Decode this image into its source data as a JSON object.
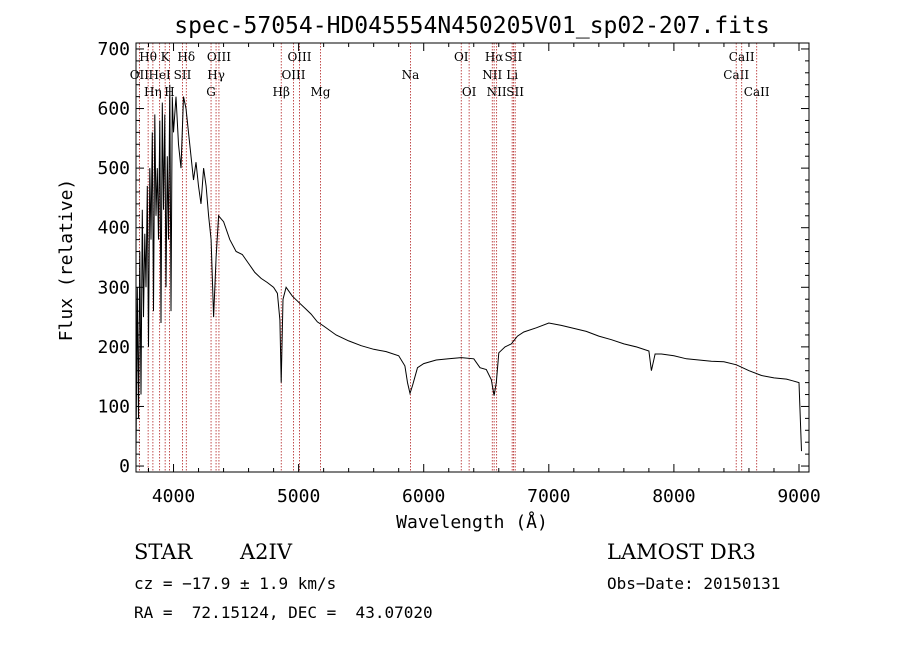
{
  "chart_data": {
    "type": "line",
    "title": "spec-57054-HD045554N450205V01_sp02-207.fits",
    "xlabel": "Wavelength (Å)",
    "ylabel": "Flux (relative)",
    "xlim": [
      3700,
      9080
    ],
    "ylim": [
      -10,
      710
    ],
    "xticks": [
      4000,
      5000,
      6000,
      7000,
      8000,
      9000
    ],
    "yticks": [
      0,
      100,
      200,
      300,
      400,
      500,
      600,
      700
    ],
    "grid": false,
    "series": [
      {
        "values_x": [
          3700,
          3710,
          3720,
          3730,
          3740,
          3750,
          3760,
          3770,
          3780,
          3790,
          3800,
          3810,
          3820,
          3830,
          3840,
          3850,
          3860,
          3870,
          3880,
          3890,
          3900,
          3910,
          3920,
          3930,
          3940,
          3950,
          3960,
          3970,
          3980,
          3990,
          4000,
          4020,
          4040,
          4060,
          4080,
          4100,
          4120,
          4140,
          4160,
          4180,
          4200,
          4220,
          4240,
          4260,
          4280,
          4300,
          4320,
          4340,
          4360,
          4380,
          4400,
          4450,
          4500,
          4550,
          4600,
          4650,
          4700,
          4750,
          4800,
          4830,
          4850,
          4861,
          4875,
          4900,
          4950,
          5000,
          5050,
          5100,
          5150,
          5200,
          5300,
          5400,
          5500,
          5600,
          5700,
          5800,
          5850,
          5870,
          5890,
          5910,
          5950,
          6000,
          6100,
          6200,
          6300,
          6400,
          6450,
          6500,
          6540,
          6563,
          6580,
          6600,
          6650,
          6700,
          6750,
          6800,
          6900,
          7000,
          7100,
          7200,
          7300,
          7400,
          7500,
          7600,
          7700,
          7800,
          7820,
          7850,
          7900,
          8000,
          8100,
          8200,
          8300,
          8400,
          8500,
          8600,
          8700,
          8800,
          8900,
          8950,
          9000,
          9020
        ],
        "values_y": [
          20,
          300,
          80,
          360,
          120,
          430,
          250,
          390,
          300,
          470,
          200,
          500,
          380,
          560,
          260,
          590,
          420,
          500,
          380,
          580,
          240,
          610,
          430,
          590,
          300,
          520,
          380,
          640,
          260,
          620,
          560,
          620,
          540,
          500,
          620,
          600,
          560,
          520,
          480,
          510,
          470,
          440,
          500,
          470,
          420,
          380,
          250,
          350,
          420,
          415,
          410,
          380,
          360,
          355,
          340,
          325,
          315,
          308,
          300,
          290,
          245,
          140,
          280,
          300,
          285,
          275,
          265,
          255,
          242,
          235,
          220,
          210,
          202,
          196,
          192,
          185,
          168,
          140,
          122,
          135,
          165,
          172,
          178,
          180,
          182,
          180,
          165,
          162,
          145,
          118,
          140,
          190,
          200,
          205,
          218,
          225,
          232,
          240,
          236,
          231,
          226,
          218,
          212,
          205,
          200,
          193,
          160,
          188,
          188,
          185,
          180,
          178,
          176,
          175,
          170,
          160,
          152,
          148,
          146,
          143,
          140,
          25
        ]
      }
    ],
    "lines": [
      {
        "label": "OII",
        "x": 3727,
        "row": 1
      },
      {
        "label": "Hθ",
        "x": 3797,
        "row": 0
      },
      {
        "label": "Hη",
        "x": 3835,
        "row": 2
      },
      {
        "label": "HeI",
        "x": 3889,
        "row": 1
      },
      {
        "label": "K",
        "x": 3933,
        "row": 0
      },
      {
        "label": "H",
        "x": 3968,
        "row": 2
      },
      {
        "label": "SII",
        "x": 4072,
        "row": 1
      },
      {
        "label": "Hδ",
        "x": 4102,
        "row": 0
      },
      {
        "label": "G",
        "x": 4300,
        "row": 2
      },
      {
        "label": "Hγ",
        "x": 4340,
        "row": 1
      },
      {
        "label": "OIII",
        "x": 4363,
        "row": 0
      },
      {
        "label": "Hβ",
        "x": 4861,
        "row": 2
      },
      {
        "label": "OIII",
        "x": 4959,
        "row": 1
      },
      {
        "label": "OIII",
        "x": 5007,
        "row": 0
      },
      {
        "label": "Mg",
        "x": 5175,
        "row": 2
      },
      {
        "label": "Na",
        "x": 5894,
        "row": 1
      },
      {
        "label": "OI",
        "x": 6300,
        "row": 0
      },
      {
        "label": "OI",
        "x": 6363,
        "row": 2
      },
      {
        "label": "NII",
        "x": 6548,
        "row": 1
      },
      {
        "label": "Hα",
        "x": 6563,
        "row": 0
      },
      {
        "label": "NII",
        "x": 6583,
        "row": 2
      },
      {
        "label": "Li",
        "x": 6707,
        "row": 1
      },
      {
        "label": "SII",
        "x": 6717,
        "row": 0
      },
      {
        "label": "SII",
        "x": 6731,
        "row": 2
      },
      {
        "label": "CaII",
        "x": 8498,
        "row": 1
      },
      {
        "label": "CaII",
        "x": 8542,
        "row": 0
      },
      {
        "label": "CaII",
        "x": 8662,
        "row": 2
      }
    ]
  },
  "info": {
    "class": "STAR",
    "subclass": "A2IV",
    "survey": "LAMOST DR3",
    "cz": "cz = −17.9 ± 1.9 km/s",
    "obs_date": "Obs−Date: 20150131",
    "radec": "RA =  72.15124, DEC =  43.07020"
  }
}
